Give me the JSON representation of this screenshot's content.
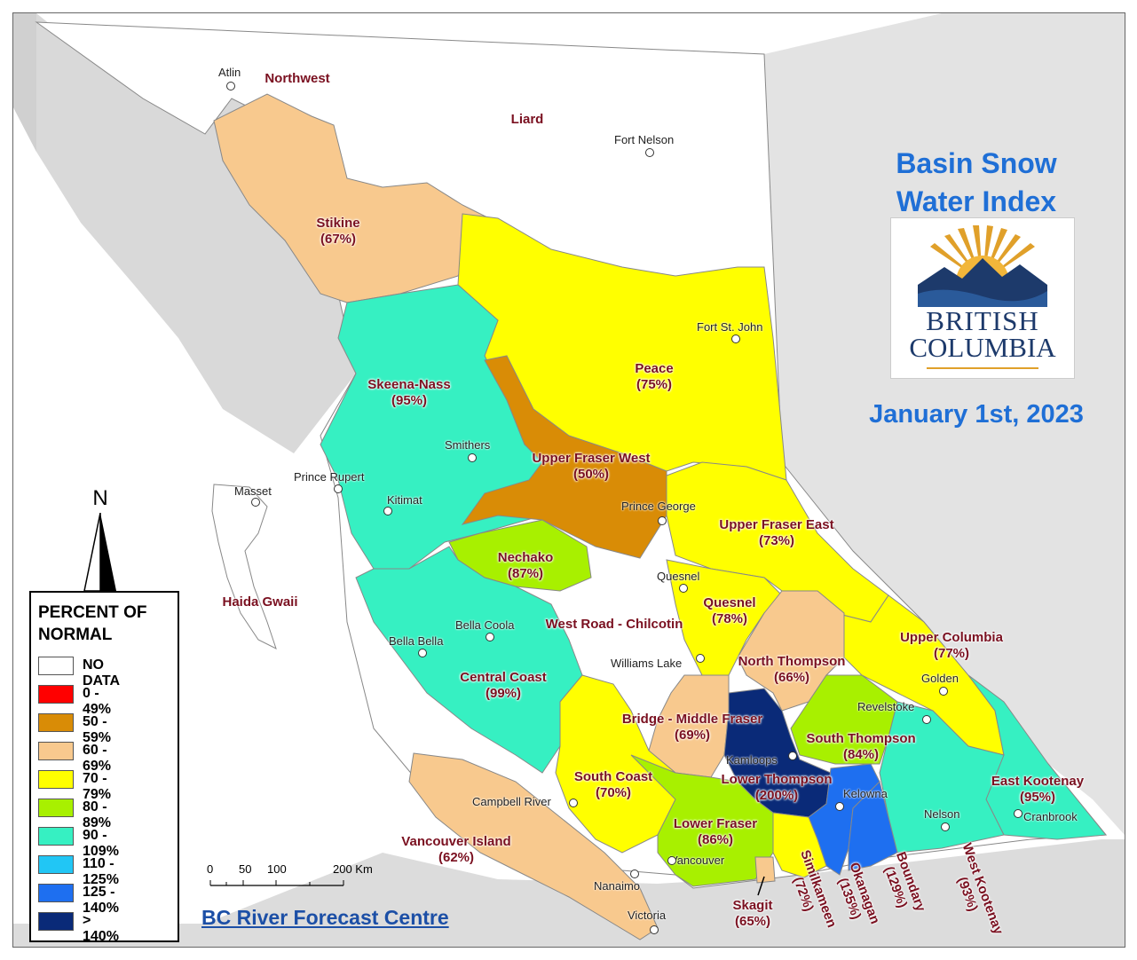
{
  "title_line1": "Basin Snow",
  "title_line2": "Water Index",
  "date": "January 1st, 2023",
  "logo": {
    "line1": "BRITISH",
    "line2": "COLUMBIA"
  },
  "credit": "BC River Forecast Centre",
  "north_label": "N",
  "scale": {
    "labels": [
      "0",
      "50",
      "100",
      "200 Km"
    ]
  },
  "legend": {
    "title": "PERCENT OF NORMAL",
    "title_line1": "PERCENT OF",
    "title_line2": "NORMAL",
    "items": [
      {
        "label": "NO DATA",
        "color": "#ffffff"
      },
      {
        "label": "0 - 49%",
        "color": "#ff0000"
      },
      {
        "label": "50 - 59%",
        "color": "#d98c06"
      },
      {
        "label": "60 - 69%",
        "color": "#f8c98e"
      },
      {
        "label": "70 - 79%",
        "color": "#ffff00"
      },
      {
        "label": "80 - 89%",
        "color": "#a8f000"
      },
      {
        "label": "90 - 109%",
        "color": "#36f0c2"
      },
      {
        "label": "110 - 125%",
        "color": "#21c6f5"
      },
      {
        "label": "125 - 140%",
        "color": "#1e6ff0"
      },
      {
        "label": "> 140%",
        "color": "#0a2a78"
      }
    ]
  },
  "basins": [
    {
      "name": "Northwest",
      "pct": ""
    },
    {
      "name": "Liard",
      "pct": ""
    },
    {
      "name": "Stikine",
      "pct": "(67%)"
    },
    {
      "name": "Peace",
      "pct": "(75%)"
    },
    {
      "name": "Skeena-Nass",
      "pct": "(95%)"
    },
    {
      "name": "Upper Fraser West",
      "pct": "(50%)"
    },
    {
      "name": "Upper Fraser East",
      "pct": "(73%)"
    },
    {
      "name": "Nechako",
      "pct": "(87%)"
    },
    {
      "name": "Haida Gwaii",
      "pct": ""
    },
    {
      "name": "West Road - Chilcotin",
      "pct": ""
    },
    {
      "name": "Quesnel",
      "pct": "(78%)"
    },
    {
      "name": "Upper Columbia",
      "pct": "(77%)"
    },
    {
      "name": "North Thompson",
      "pct": "(66%)"
    },
    {
      "name": "Central Coast",
      "pct": "(99%)"
    },
    {
      "name": "Bridge - Middle Fraser",
      "pct": "(69%)"
    },
    {
      "name": "South Thompson",
      "pct": "(84%)"
    },
    {
      "name": "South Coast",
      "pct": "(70%)"
    },
    {
      "name": "Lower Thompson",
      "pct": "(200%)"
    },
    {
      "name": "East Kootenay",
      "pct": "(95%)"
    },
    {
      "name": "Vancouver Island",
      "pct": "(62%)"
    },
    {
      "name": "Lower Fraser",
      "pct": "(86%)"
    },
    {
      "name": "Skagit",
      "pct": "(65%)"
    },
    {
      "name": "Similkameen",
      "pct": "(72%)"
    },
    {
      "name": "Okanagan",
      "pct": "(135%)"
    },
    {
      "name": "Boundary",
      "pct": "(129%)"
    },
    {
      "name": "West Kootenay",
      "pct": "(93%)"
    }
  ],
  "cities": [
    "Atlin",
    "Fort Nelson",
    "Fort St. John",
    "Smithers",
    "Prince Rupert",
    "Masset",
    "Kitimat",
    "Prince George",
    "Quesnel",
    "Bella Coola",
    "Bella Bella",
    "Williams Lake",
    "Golden",
    "Revelstoke",
    "Kamloops",
    "Kelowna",
    "Nelson",
    "Cranbrook",
    "Campbell River",
    "Nanaimo",
    "Vancouver",
    "Victoria"
  ]
}
